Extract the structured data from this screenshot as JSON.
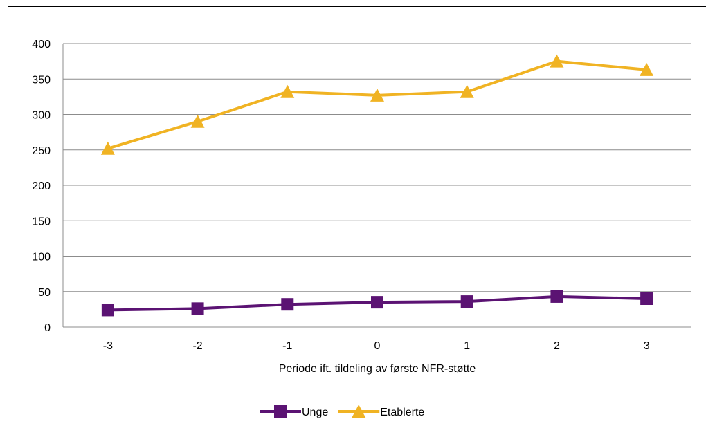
{
  "chart_data": {
    "type": "line",
    "xlabel": "Periode ift. tildeling av første NFR-støtte",
    "ylabel": "",
    "categories": [
      "-3",
      "-2",
      "-1",
      "0",
      "1",
      "2",
      "3"
    ],
    "yticks": [
      "0",
      "50",
      "100",
      "150",
      "200",
      "250",
      "300",
      "350",
      "400"
    ],
    "ylim": [
      0,
      400
    ],
    "grid": true,
    "legend_position": "bottom",
    "series": [
      {
        "name": "Unge",
        "values": [
          24,
          26,
          32,
          35,
          36,
          43,
          40
        ],
        "color": "#5b1373",
        "marker": "square"
      },
      {
        "name": "Etablerte",
        "values": [
          252,
          290,
          332,
          327,
          332,
          375,
          363
        ],
        "color": "#f0b323",
        "marker": "triangle"
      }
    ]
  }
}
